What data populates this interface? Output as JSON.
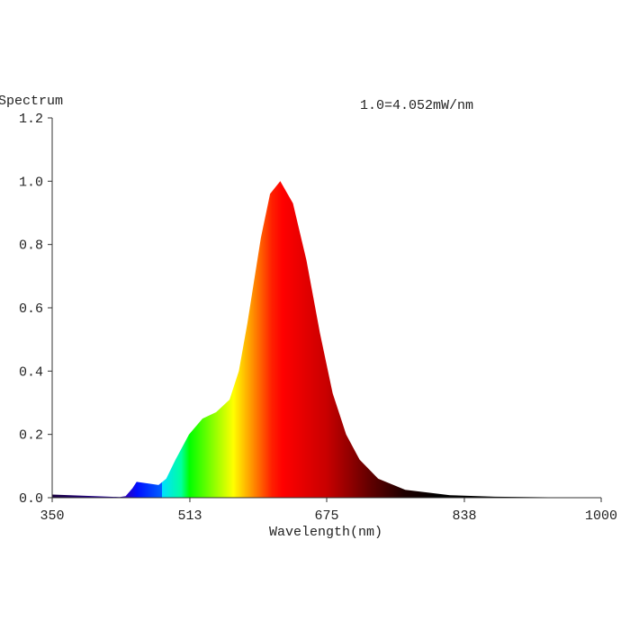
{
  "chart_data": {
    "type": "area",
    "title": "",
    "ylabel": "Spectrum",
    "xlabel": "Wavelength(nm)",
    "annotation": "1.0=4.052mW/nm",
    "xlim": [
      350,
      1000
    ],
    "ylim": [
      0,
      1.2
    ],
    "xticks": [
      "350",
      "513",
      "675",
      "838",
      "1000"
    ],
    "yticks": [
      "0.0",
      "0.2",
      "0.4",
      "0.6",
      "0.8",
      "1.0",
      "1.2"
    ],
    "grid": false,
    "fill": "wavelength-colored spectrum gradient",
    "x": [
      350,
      400,
      430,
      437,
      445,
      450,
      464,
      476,
      485,
      496,
      512,
      528,
      544,
      560,
      571,
      581,
      597,
      608,
      620,
      635,
      651,
      667,
      682,
      698,
      714,
      736,
      768,
      821,
      874,
      950,
      1000
    ],
    "y": [
      0.01,
      0.005,
      0.002,
      0.005,
      0.03,
      0.05,
      0.045,
      0.04,
      0.06,
      0.12,
      0.2,
      0.25,
      0.27,
      0.31,
      0.4,
      0.55,
      0.82,
      0.96,
      1.0,
      0.93,
      0.75,
      0.52,
      0.33,
      0.2,
      0.12,
      0.06,
      0.025,
      0.008,
      0.003,
      0.001,
      0.0
    ]
  }
}
